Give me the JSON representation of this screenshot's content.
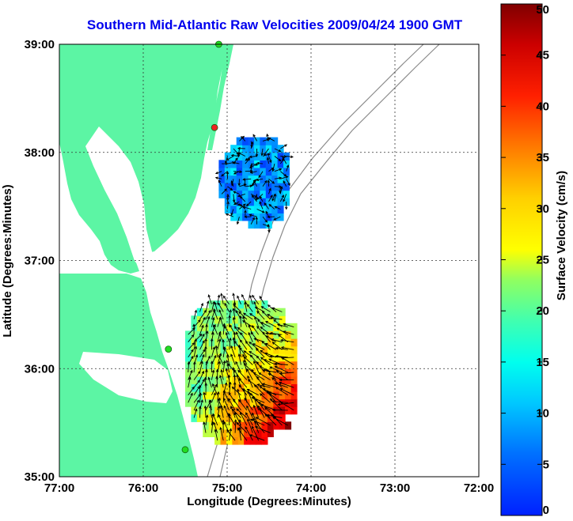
{
  "chart_data": {
    "type": "heatmap",
    "title": "Southern Mid-Atlantic Raw Velocities 2009/04/24 1900 GMT",
    "xlabel": "Longitude (Degrees:Minutes)",
    "ylabel": "Latitude (Degrees:Minutes)",
    "x_ticks": [
      "77:00",
      "76:00",
      "75:00",
      "74:00",
      "73:00",
      "72:00"
    ],
    "y_ticks": [
      "35:00",
      "36:00",
      "37:00",
      "38:00",
      "39:00"
    ],
    "xlim": [
      -77,
      -72
    ],
    "ylim": [
      35,
      39
    ],
    "grid": true,
    "colorbar": {
      "label": "Surface Velocity (cm/s)",
      "range": [
        0,
        50
      ],
      "ticks": [
        "0",
        "5",
        "10",
        "15",
        "20",
        "25",
        "30",
        "35",
        "40",
        "45",
        "50"
      ],
      "colormap": "jet"
    },
    "land_color": "#5cf5a4",
    "station_color": "#22dd22",
    "station_alt_color": "#ee2222",
    "stations": [
      {
        "lon": -75.1,
        "lat": 39.0,
        "color": "#22dd22"
      },
      {
        "lon": -75.15,
        "lat": 38.23,
        "color": "#ee2222"
      },
      {
        "lon": -75.7,
        "lat": 36.18,
        "color": "#22dd22"
      },
      {
        "lon": -75.5,
        "lat": 35.25,
        "color": "#22dd22"
      }
    ],
    "velocity_regions": [
      {
        "name": "northern cluster",
        "lon_range": [
          -75.1,
          -74.3
        ],
        "lat_range": [
          37.3,
          38.1
        ],
        "speed_range_cms": [
          5,
          20
        ]
      },
      {
        "name": "southern cluster",
        "lon_range": [
          -75.5,
          -74.2
        ],
        "lat_range": [
          35.3,
          36.6
        ],
        "speed_range_cms": [
          10,
          50
        ]
      }
    ]
  }
}
